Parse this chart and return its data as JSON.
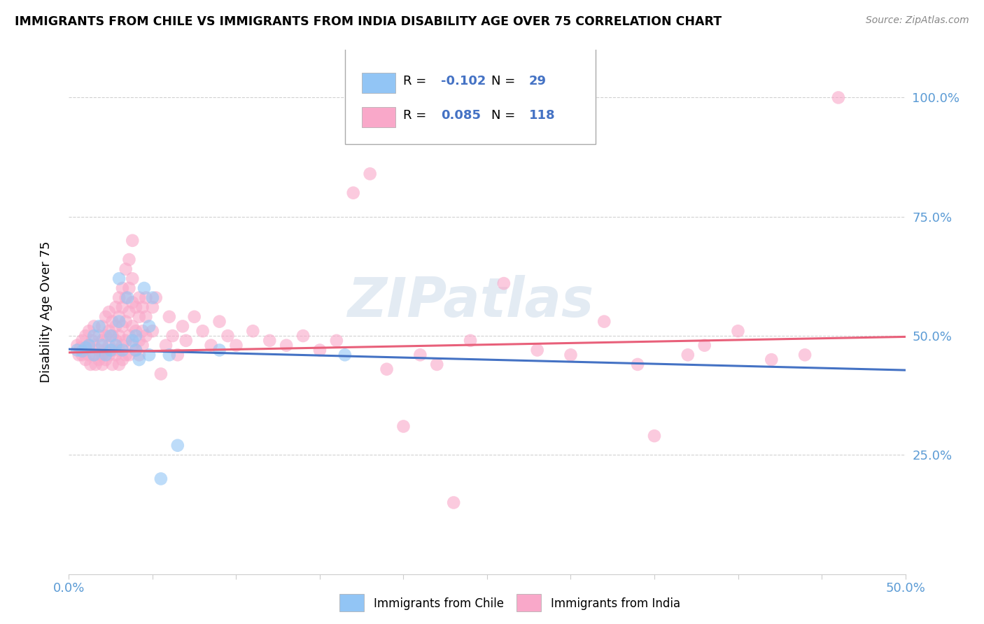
{
  "title": "IMMIGRANTS FROM CHILE VS IMMIGRANTS FROM INDIA DISABILITY AGE OVER 75 CORRELATION CHART",
  "source": "Source: ZipAtlas.com",
  "ylabel": "Disability Age Over 75",
  "xlim": [
    0.0,
    0.5
  ],
  "ylim": [
    0.0,
    1.1
  ],
  "chile_R": -0.102,
  "chile_N": 29,
  "india_R": 0.085,
  "india_N": 118,
  "chile_color": "#92C5F5",
  "india_color": "#F9A8C9",
  "chile_line_color": "#4472C4",
  "india_line_color": "#E8607A",
  "r_color": "#4472C4",
  "watermark": "ZIPatlas",
  "grid_color": "#CCCCCC",
  "chile_line_start_y": 0.472,
  "chile_line_end_y": 0.428,
  "india_line_start_y": 0.465,
  "india_line_end_y": 0.498,
  "chile_scatter": [
    [
      0.005,
      0.47
    ],
    [
      0.008,
      0.468
    ],
    [
      0.01,
      0.475
    ],
    [
      0.012,
      0.48
    ],
    [
      0.015,
      0.5
    ],
    [
      0.015,
      0.46
    ],
    [
      0.018,
      0.52
    ],
    [
      0.02,
      0.48
    ],
    [
      0.022,
      0.46
    ],
    [
      0.025,
      0.5
    ],
    [
      0.025,
      0.47
    ],
    [
      0.028,
      0.48
    ],
    [
      0.03,
      0.62
    ],
    [
      0.03,
      0.53
    ],
    [
      0.032,
      0.47
    ],
    [
      0.035,
      0.58
    ],
    [
      0.038,
      0.49
    ],
    [
      0.04,
      0.5
    ],
    [
      0.04,
      0.47
    ],
    [
      0.042,
      0.45
    ],
    [
      0.045,
      0.6
    ],
    [
      0.048,
      0.52
    ],
    [
      0.048,
      0.46
    ],
    [
      0.05,
      0.58
    ],
    [
      0.055,
      0.2
    ],
    [
      0.06,
      0.46
    ],
    [
      0.065,
      0.27
    ],
    [
      0.09,
      0.47
    ],
    [
      0.165,
      0.46
    ]
  ],
  "india_scatter": [
    [
      0.005,
      0.48
    ],
    [
      0.006,
      0.46
    ],
    [
      0.007,
      0.475
    ],
    [
      0.008,
      0.49
    ],
    [
      0.008,
      0.46
    ],
    [
      0.01,
      0.5
    ],
    [
      0.01,
      0.47
    ],
    [
      0.01,
      0.45
    ],
    [
      0.012,
      0.51
    ],
    [
      0.012,
      0.48
    ],
    [
      0.012,
      0.46
    ],
    [
      0.013,
      0.44
    ],
    [
      0.014,
      0.49
    ],
    [
      0.015,
      0.52
    ],
    [
      0.015,
      0.48
    ],
    [
      0.015,
      0.46
    ],
    [
      0.016,
      0.44
    ],
    [
      0.018,
      0.5
    ],
    [
      0.018,
      0.47
    ],
    [
      0.018,
      0.45
    ],
    [
      0.02,
      0.52
    ],
    [
      0.02,
      0.49
    ],
    [
      0.02,
      0.46
    ],
    [
      0.02,
      0.44
    ],
    [
      0.022,
      0.54
    ],
    [
      0.022,
      0.5
    ],
    [
      0.022,
      0.47
    ],
    [
      0.022,
      0.45
    ],
    [
      0.024,
      0.55
    ],
    [
      0.024,
      0.51
    ],
    [
      0.024,
      0.48
    ],
    [
      0.024,
      0.46
    ],
    [
      0.026,
      0.53
    ],
    [
      0.026,
      0.5
    ],
    [
      0.026,
      0.47
    ],
    [
      0.026,
      0.44
    ],
    [
      0.028,
      0.56
    ],
    [
      0.028,
      0.52
    ],
    [
      0.028,
      0.49
    ],
    [
      0.028,
      0.46
    ],
    [
      0.03,
      0.58
    ],
    [
      0.03,
      0.54
    ],
    [
      0.03,
      0.5
    ],
    [
      0.03,
      0.47
    ],
    [
      0.03,
      0.44
    ],
    [
      0.032,
      0.6
    ],
    [
      0.032,
      0.56
    ],
    [
      0.032,
      0.52
    ],
    [
      0.032,
      0.48
    ],
    [
      0.032,
      0.45
    ],
    [
      0.034,
      0.64
    ],
    [
      0.034,
      0.58
    ],
    [
      0.034,
      0.53
    ],
    [
      0.034,
      0.49
    ],
    [
      0.034,
      0.46
    ],
    [
      0.036,
      0.66
    ],
    [
      0.036,
      0.6
    ],
    [
      0.036,
      0.55
    ],
    [
      0.036,
      0.5
    ],
    [
      0.036,
      0.46
    ],
    [
      0.038,
      0.7
    ],
    [
      0.038,
      0.62
    ],
    [
      0.038,
      0.57
    ],
    [
      0.038,
      0.52
    ],
    [
      0.038,
      0.48
    ],
    [
      0.04,
      0.56
    ],
    [
      0.04,
      0.51
    ],
    [
      0.04,
      0.47
    ],
    [
      0.042,
      0.58
    ],
    [
      0.042,
      0.54
    ],
    [
      0.042,
      0.49
    ],
    [
      0.042,
      0.46
    ],
    [
      0.044,
      0.56
    ],
    [
      0.044,
      0.51
    ],
    [
      0.044,
      0.48
    ],
    [
      0.046,
      0.58
    ],
    [
      0.046,
      0.54
    ],
    [
      0.046,
      0.5
    ],
    [
      0.05,
      0.56
    ],
    [
      0.05,
      0.51
    ],
    [
      0.052,
      0.58
    ],
    [
      0.055,
      0.42
    ],
    [
      0.058,
      0.48
    ],
    [
      0.06,
      0.54
    ],
    [
      0.062,
      0.5
    ],
    [
      0.065,
      0.46
    ],
    [
      0.068,
      0.52
    ],
    [
      0.07,
      0.49
    ],
    [
      0.075,
      0.54
    ],
    [
      0.08,
      0.51
    ],
    [
      0.085,
      0.48
    ],
    [
      0.09,
      0.53
    ],
    [
      0.095,
      0.5
    ],
    [
      0.1,
      0.48
    ],
    [
      0.11,
      0.51
    ],
    [
      0.12,
      0.49
    ],
    [
      0.13,
      0.48
    ],
    [
      0.14,
      0.5
    ],
    [
      0.15,
      0.47
    ],
    [
      0.16,
      0.49
    ],
    [
      0.17,
      0.8
    ],
    [
      0.18,
      0.84
    ],
    [
      0.19,
      0.43
    ],
    [
      0.2,
      0.31
    ],
    [
      0.21,
      0.46
    ],
    [
      0.22,
      0.44
    ],
    [
      0.23,
      0.15
    ],
    [
      0.24,
      0.49
    ],
    [
      0.26,
      0.61
    ],
    [
      0.28,
      0.47
    ],
    [
      0.3,
      0.46
    ],
    [
      0.32,
      0.53
    ],
    [
      0.34,
      0.44
    ],
    [
      0.35,
      0.29
    ],
    [
      0.37,
      0.46
    ],
    [
      0.38,
      0.48
    ],
    [
      0.4,
      0.51
    ],
    [
      0.42,
      0.45
    ],
    [
      0.44,
      0.46
    ],
    [
      0.46,
      1.0
    ]
  ]
}
